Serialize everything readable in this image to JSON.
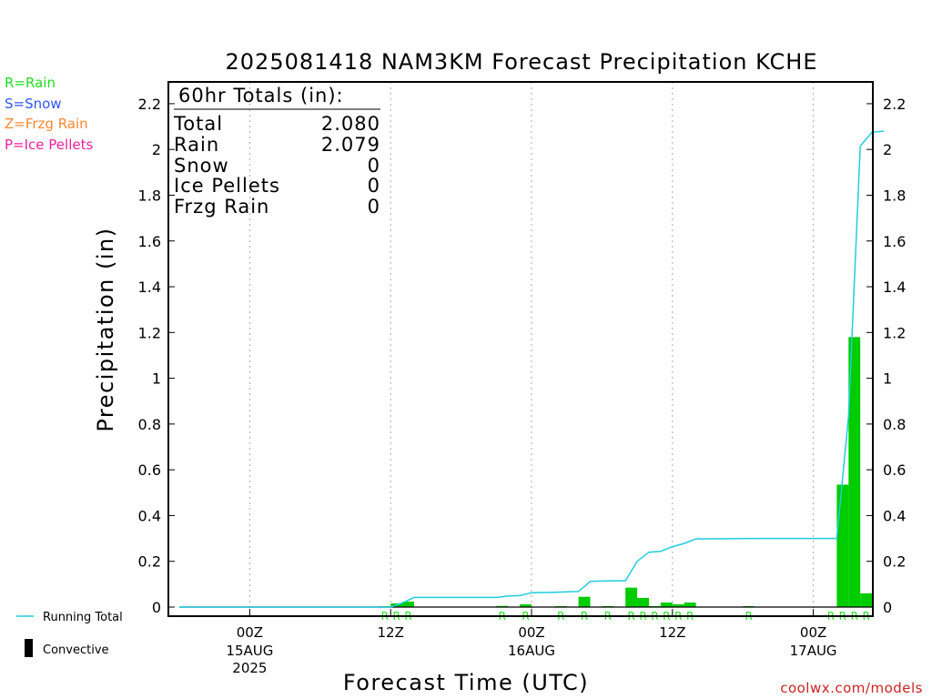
{
  "chart_data": {
    "type": "bar",
    "title": "2025081418 NAM3KM Forecast Precipitation KCHE",
    "xlabel": "Forecast Time (UTC)",
    "ylabel": "Precipitation (in)",
    "ylim": [
      0,
      2.2
    ],
    "yticks": [
      "0",
      "0.2",
      "0.4",
      "0.6",
      "0.8",
      "1",
      "1.2",
      "1.4",
      "1.6",
      "1.8",
      "2",
      "2.2"
    ],
    "xlim_forecast_hours": [
      0,
      60
    ],
    "xticks": [
      {
        "hour": 6,
        "label": "00Z",
        "sub1": "15AUG",
        "sub2": "2025"
      },
      {
        "hour": 18,
        "label": "12Z",
        "sub1": "",
        "sub2": ""
      },
      {
        "hour": 30,
        "label": "00Z",
        "sub1": "16AUG",
        "sub2": ""
      },
      {
        "hour": 42,
        "label": "12Z",
        "sub1": "",
        "sub2": ""
      },
      {
        "hour": 54,
        "label": "00Z",
        "sub1": "17AUG",
        "sub2": ""
      }
    ],
    "legend_types": [
      {
        "text": "R=Rain",
        "color": "#22dd22"
      },
      {
        "text": "S=Snow",
        "color": "#3355ee"
      },
      {
        "text": "Z=Frzg Rain",
        "color": "#ff8833"
      },
      {
        "text": "P=Ice Pellets",
        "color": "#ee2299"
      }
    ],
    "legend_lines": [
      {
        "text": "Running Total",
        "color": "#22ccdd",
        "kind": "line"
      },
      {
        "text": "Convective",
        "color": "#000000",
        "kind": "bar"
      }
    ],
    "totals": {
      "header": "60hr Totals (in):",
      "rows": [
        {
          "label": "Total",
          "value": "2.080"
        },
        {
          "label": "Rain",
          "value": "2.079"
        },
        {
          "label": "Snow",
          "value": "0"
        },
        {
          "label": "Ice Pellets",
          "value": "0"
        },
        {
          "label": "Frzg Rain",
          "value": "0"
        }
      ]
    },
    "bar_color": "#00cc00",
    "running_color": "#22ccdd",
    "type_marker": "R",
    "bars": [
      {
        "hour": 18,
        "value": 0.003
      },
      {
        "hour": 19,
        "value": 0.016
      },
      {
        "hour": 20,
        "value": 0.024
      },
      {
        "hour": 28,
        "value": 0.005
      },
      {
        "hour": 30,
        "value": 0.012
      },
      {
        "hour": 33,
        "value": 0.002
      },
      {
        "hour": 35,
        "value": 0.045
      },
      {
        "hour": 37,
        "value": 0.002
      },
      {
        "hour": 39,
        "value": 0.085
      },
      {
        "hour": 40,
        "value": 0.04
      },
      {
        "hour": 41,
        "value": 0.004
      },
      {
        "hour": 42,
        "value": 0.02
      },
      {
        "hour": 43,
        "value": 0.012
      },
      {
        "hour": 44,
        "value": 0.02
      },
      {
        "hour": 49,
        "value": 0.002
      },
      {
        "hour": 57,
        "value": 0.535
      },
      {
        "hour": 58,
        "value": 1.18
      },
      {
        "hour": 59,
        "value": 0.06
      }
    ],
    "running_total": [
      {
        "hour": 0,
        "value": 0
      },
      {
        "hour": 18,
        "value": 0
      },
      {
        "hour": 19,
        "value": 0.018
      },
      {
        "hour": 20,
        "value": 0.042
      },
      {
        "hour": 27,
        "value": 0.042
      },
      {
        "hour": 28,
        "value": 0.048
      },
      {
        "hour": 29,
        "value": 0.05
      },
      {
        "hour": 30,
        "value": 0.063
      },
      {
        "hour": 32,
        "value": 0.065
      },
      {
        "hour": 33,
        "value": 0.067
      },
      {
        "hour": 34,
        "value": 0.068
      },
      {
        "hour": 35,
        "value": 0.112
      },
      {
        "hour": 37,
        "value": 0.115
      },
      {
        "hour": 38,
        "value": 0.115
      },
      {
        "hour": 39,
        "value": 0.2
      },
      {
        "hour": 40,
        "value": 0.24
      },
      {
        "hour": 41,
        "value": 0.244
      },
      {
        "hour": 42,
        "value": 0.264
      },
      {
        "hour": 43,
        "value": 0.278
      },
      {
        "hour": 44,
        "value": 0.298
      },
      {
        "hour": 49,
        "value": 0.3
      },
      {
        "hour": 56,
        "value": 0.3
      },
      {
        "hour": 57,
        "value": 0.835
      },
      {
        "hour": 58,
        "value": 2.015
      },
      {
        "hour": 59,
        "value": 2.075
      },
      {
        "hour": 60,
        "value": 2.08
      }
    ],
    "markers": [
      18,
      19,
      20,
      28,
      30,
      33,
      35,
      37,
      39,
      40,
      41,
      42,
      43,
      44,
      49,
      56,
      57,
      58,
      59
    ],
    "grid": "vertical-dotted"
  },
  "credit": "coolwx.com/models"
}
